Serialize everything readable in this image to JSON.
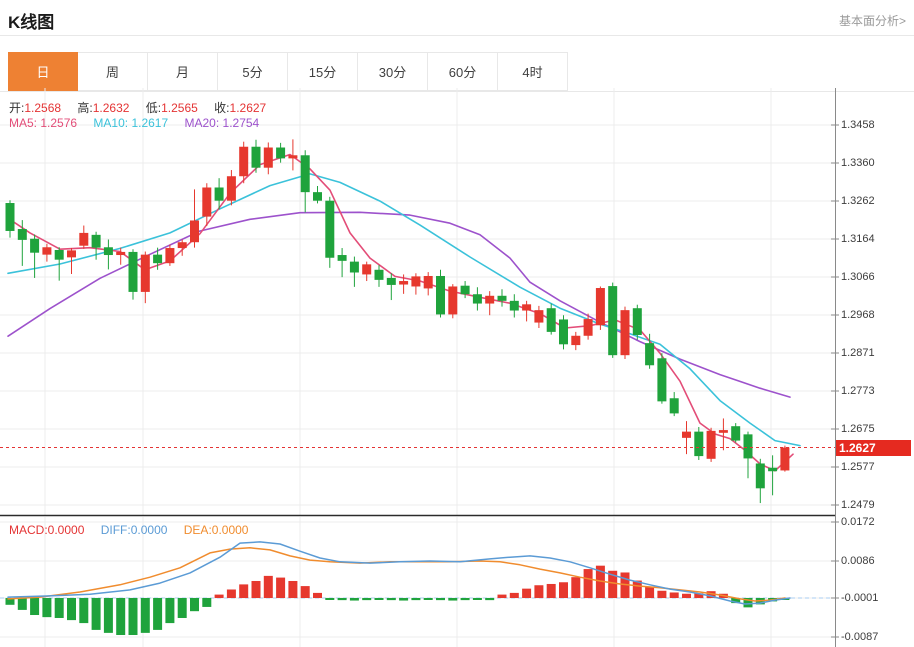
{
  "header": {
    "title": "K线图",
    "analysis_link": "基本面分析>"
  },
  "tabs": {
    "items": [
      "日",
      "周",
      "月",
      "5分",
      "15分",
      "30分",
      "60分",
      "4时"
    ],
    "selected_index": 0
  },
  "info": {
    "open_label": "开:",
    "open": "1.2568",
    "high_label": "高:",
    "high": "1.2632",
    "low_label": "低:",
    "low": "1.2565",
    "close_label": "收:",
    "close": "1.2627",
    "ma5_label": "MA5:",
    "ma5": "1.2576",
    "ma10_label": "MA10:",
    "ma10": "1.2617",
    "ma20_label": "MA20:",
    "ma20": "1.2754"
  },
  "macd_info": {
    "macd_label": "MACD:",
    "macd": "0.0000",
    "diff_label": "DIFF:",
    "diff": "0.0000",
    "dea_label": "DEA:",
    "dea": "0.0000"
  },
  "price_axis": {
    "labels": [
      "1.3458",
      "1.3360",
      "1.3262",
      "1.3164",
      "1.3066",
      "1.2968",
      "1.2871",
      "1.2773",
      "1.2675",
      "1.2577",
      "1.2479"
    ],
    "mark": "1.2627"
  },
  "macd_axis": {
    "labels": [
      "0.0172",
      "0.0086",
      "-0.0001",
      "-0.0087"
    ]
  },
  "colors": {
    "up": "#e6382e",
    "down": "#1fa33c",
    "ma5": "#e34d78",
    "ma10": "#3bc2da",
    "ma20": "#9d52cc",
    "diff": "#5b9bd5",
    "dea": "#f08c2e",
    "tab_active": "#ee8133",
    "value_red": "#e43434",
    "grid": "#ececec",
    "axis": "#8a8a8a",
    "mark_bg": "#e52a20",
    "price_line": "#e43434",
    "zero_dash": "#a8cdf0"
  },
  "chart_data": {
    "type": "candlestick",
    "period": "日",
    "ylim": [
      1.2479,
      1.3458
    ],
    "macd_ylim": [
      -0.0087,
      0.0172
    ],
    "last_price": 1.2627,
    "candles": [
      [
        1.3257,
        1.3264,
        1.3168,
        1.3185
      ],
      [
        1.319,
        1.3213,
        1.3095,
        1.3162
      ],
      [
        1.3165,
        1.3176,
        1.3064,
        1.3129
      ],
      [
        1.3124,
        1.3152,
        1.3106,
        1.3143
      ],
      [
        1.3136,
        1.3143,
        1.3057,
        1.3111
      ],
      [
        1.3117,
        1.3141,
        1.3074,
        1.3135
      ],
      [
        1.3147,
        1.3199,
        1.3139,
        1.318
      ],
      [
        1.3175,
        1.3183,
        1.3111,
        1.3142
      ],
      [
        1.3143,
        1.3163,
        1.3086,
        1.3123
      ],
      [
        1.3123,
        1.3142,
        1.3098,
        1.3131
      ],
      [
        1.3131,
        1.3138,
        1.3008,
        1.3028
      ],
      [
        1.3028,
        1.3132,
        1.2999,
        1.3124
      ],
      [
        1.3124,
        1.3142,
        1.3085,
        1.3102
      ],
      [
        1.3102,
        1.315,
        1.3095,
        1.3141
      ],
      [
        1.3141,
        1.3163,
        1.3121,
        1.3156
      ],
      [
        1.3156,
        1.3292,
        1.3142,
        1.3212
      ],
      [
        1.3222,
        1.3308,
        1.3198,
        1.3297
      ],
      [
        1.3297,
        1.3321,
        1.3241,
        1.3263
      ],
      [
        1.3263,
        1.3342,
        1.3251,
        1.3326
      ],
      [
        1.3326,
        1.3415,
        1.3308,
        1.3402
      ],
      [
        1.3402,
        1.342,
        1.3335,
        1.3348
      ],
      [
        1.3348,
        1.3413,
        1.3331,
        1.34
      ],
      [
        1.34,
        1.3412,
        1.3361,
        1.3372
      ],
      [
        1.3372,
        1.3421,
        1.3341,
        1.338
      ],
      [
        1.338,
        1.3393,
        1.3233,
        1.3285
      ],
      [
        1.3285,
        1.3301,
        1.3256,
        1.3263
      ],
      [
        1.3263,
        1.3273,
        1.309,
        1.3116
      ],
      [
        1.3123,
        1.3141,
        1.3066,
        1.3108
      ],
      [
        1.3106,
        1.3119,
        1.3041,
        1.3078
      ],
      [
        1.3073,
        1.3106,
        1.3056,
        1.3099
      ],
      [
        1.3085,
        1.3097,
        1.3041,
        1.3059
      ],
      [
        1.3064,
        1.3076,
        1.3007,
        1.3046
      ],
      [
        1.3047,
        1.3073,
        1.3023,
        1.3056
      ],
      [
        1.3042,
        1.3076,
        1.3021,
        1.3068
      ],
      [
        1.3037,
        1.3079,
        1.3019,
        1.3069
      ],
      [
        1.3069,
        1.3085,
        1.2962,
        1.297
      ],
      [
        1.297,
        1.3048,
        1.296,
        1.3042
      ],
      [
        1.3044,
        1.3056,
        1.3012,
        1.3022
      ],
      [
        1.3022,
        1.304,
        1.298,
        1.2998
      ],
      [
        1.2998,
        1.303,
        1.2968,
        1.3018
      ],
      [
        1.3018,
        1.3035,
        1.299,
        1.3005
      ],
      [
        1.3005,
        1.3022,
        1.2962,
        1.298
      ],
      [
        1.298,
        1.3005,
        1.2952,
        1.2996
      ],
      [
        1.2949,
        1.2992,
        1.2935,
        1.2981
      ],
      [
        1.2986,
        1.2998,
        1.2918,
        1.2925
      ],
      [
        1.2957,
        1.2968,
        1.288,
        1.2893
      ],
      [
        1.2891,
        1.2925,
        1.2878,
        1.2915
      ],
      [
        1.2915,
        1.2972,
        1.2905,
        1.2958
      ],
      [
        1.2942,
        1.3042,
        1.293,
        1.3038
      ],
      [
        1.3043,
        1.3052,
        1.2858,
        1.2865
      ],
      [
        1.2865,
        1.299,
        1.2855,
        1.2981
      ],
      [
        1.2986,
        1.2995,
        1.2905,
        1.2917
      ],
      [
        1.2896,
        1.292,
        1.283,
        1.2839
      ],
      [
        1.2857,
        1.287,
        1.274,
        1.2746
      ],
      [
        1.2754,
        1.277,
        1.2708,
        1.2715
      ],
      [
        1.2652,
        1.2695,
        1.261,
        1.2668
      ],
      [
        1.2668,
        1.268,
        1.2595,
        1.2605
      ],
      [
        1.2598,
        1.2678,
        1.259,
        1.267
      ],
      [
        1.2665,
        1.2702,
        1.262,
        1.2672
      ],
      [
        1.2682,
        1.269,
        1.264,
        1.2645
      ],
      [
        1.2661,
        1.2668,
        1.2548,
        1.2599
      ],
      [
        1.2586,
        1.2598,
        1.2484,
        1.2522
      ],
      [
        1.2575,
        1.2607,
        1.2504,
        1.2566
      ],
      [
        1.2568,
        1.2632,
        1.2565,
        1.2627
      ]
    ],
    "ma5_line": [
      [
        8,
        1.3218
      ],
      [
        30,
        1.318
      ],
      [
        60,
        1.3138
      ],
      [
        90,
        1.3142
      ],
      [
        120,
        1.3132
      ],
      [
        145,
        1.3085
      ],
      [
        170,
        1.3108
      ],
      [
        200,
        1.3178
      ],
      [
        230,
        1.3282
      ],
      [
        260,
        1.3356
      ],
      [
        290,
        1.3382
      ],
      [
        310,
        1.3345
      ],
      [
        330,
        1.329
      ],
      [
        350,
        1.318
      ],
      [
        370,
        1.3115
      ],
      [
        395,
        1.3068
      ],
      [
        420,
        1.3056
      ],
      [
        450,
        1.303
      ],
      [
        480,
        1.3014
      ],
      [
        510,
        1.2999
      ],
      [
        540,
        1.2972
      ],
      [
        565,
        1.2935
      ],
      [
        590,
        1.2941
      ],
      [
        615,
        1.2956
      ],
      [
        640,
        1.293
      ],
      [
        660,
        1.287
      ],
      [
        680,
        1.2798
      ],
      [
        700,
        1.269
      ],
      [
        715,
        1.2662
      ],
      [
        730,
        1.265
      ],
      [
        745,
        1.262
      ],
      [
        760,
        1.2585
      ],
      [
        775,
        1.2567
      ],
      [
        793,
        1.261
      ]
    ],
    "ma10_line": [
      [
        8,
        1.3076
      ],
      [
        60,
        1.31
      ],
      [
        120,
        1.314
      ],
      [
        170,
        1.318
      ],
      [
        220,
        1.3242
      ],
      [
        270,
        1.3302
      ],
      [
        310,
        1.3332
      ],
      [
        340,
        1.331
      ],
      [
        380,
        1.3262
      ],
      [
        420,
        1.32
      ],
      [
        470,
        1.3118
      ],
      [
        520,
        1.304
      ],
      [
        560,
        1.2986
      ],
      [
        600,
        1.2945
      ],
      [
        630,
        1.292
      ],
      [
        660,
        1.2893
      ],
      [
        690,
        1.283
      ],
      [
        720,
        1.2748
      ],
      [
        750,
        1.269
      ],
      [
        775,
        1.2645
      ],
      [
        800,
        1.2632
      ]
    ],
    "ma20_line": [
      [
        8,
        1.2914
      ],
      [
        50,
        1.2985
      ],
      [
        100,
        1.3063
      ],
      [
        150,
        1.3125
      ],
      [
        200,
        1.3185
      ],
      [
        250,
        1.3215
      ],
      [
        300,
        1.3232
      ],
      [
        360,
        1.3233
      ],
      [
        410,
        1.3226
      ],
      [
        450,
        1.3205
      ],
      [
        480,
        1.3175
      ],
      [
        510,
        1.3115
      ],
      [
        530,
        1.3053
      ],
      [
        560,
        1.3005
      ],
      [
        600,
        1.295
      ],
      [
        640,
        1.29
      ],
      [
        680,
        1.2855
      ],
      [
        720,
        1.2815
      ],
      [
        760,
        1.278
      ],
      [
        790,
        1.2757
      ]
    ],
    "macd": {
      "hist": [
        -0.0016,
        -0.0028,
        -0.004,
        -0.0045,
        -0.0047,
        -0.0052,
        -0.0059,
        -0.0075,
        -0.0082,
        -0.0087,
        -0.0087,
        -0.0082,
        -0.0075,
        -0.0059,
        -0.0047,
        -0.0031,
        -0.0021,
        0.0008,
        0.002,
        0.0032,
        0.004,
        0.0052,
        0.0048,
        0.004,
        0.0028,
        0.0012,
        -0.0003,
        -0.0005,
        -0.0006,
        -0.0005,
        -0.0004,
        -0.0005,
        -0.0006,
        -0.0005,
        -0.0004,
        -0.0005,
        -0.0006,
        -0.0005,
        -0.0004,
        -0.0005,
        0.0008,
        0.0012,
        0.0022,
        0.003,
        0.0033,
        0.0037,
        0.0049,
        0.0068,
        0.0076,
        0.0064,
        0.006,
        0.0041,
        0.0026,
        0.0017,
        0.0013,
        0.001,
        0.0011,
        0.0016,
        0.001,
        -0.0012,
        -0.0022,
        -0.0015,
        -0.0008,
        -0.0002
      ],
      "diff_line": [
        [
          8,
          0.0002
        ],
        [
          50,
          0.0005
        ],
        [
          90,
          0.0009
        ],
        [
          130,
          0.0019
        ],
        [
          160,
          0.0035
        ],
        [
          190,
          0.0059
        ],
        [
          220,
          0.0096
        ],
        [
          240,
          0.0129
        ],
        [
          260,
          0.0132
        ],
        [
          280,
          0.0127
        ],
        [
          300,
          0.011
        ],
        [
          320,
          0.0094
        ],
        [
          340,
          0.0085
        ],
        [
          370,
          0.0082
        ],
        [
          400,
          0.0085
        ],
        [
          430,
          0.0087
        ],
        [
          460,
          0.0085
        ],
        [
          490,
          0.0092
        ],
        [
          510,
          0.0096
        ],
        [
          530,
          0.0099
        ],
        [
          550,
          0.0094
        ],
        [
          570,
          0.0085
        ],
        [
          590,
          0.0071
        ],
        [
          610,
          0.0056
        ],
        [
          630,
          0.0042
        ],
        [
          650,
          0.0031
        ],
        [
          670,
          0.0021
        ],
        [
          690,
          0.0014
        ],
        [
          710,
          0.0005
        ],
        [
          730,
          -0.0007
        ],
        [
          745,
          -0.0014
        ],
        [
          760,
          -0.0012
        ],
        [
          775,
          -0.0005
        ],
        [
          790,
          0.0
        ]
      ],
      "dea_line": [
        [
          8,
          -0.0002
        ],
        [
          40,
          0.0002
        ],
        [
          80,
          0.0014
        ],
        [
          120,
          0.0031
        ],
        [
          150,
          0.0049
        ],
        [
          180,
          0.0071
        ],
        [
          210,
          0.0106
        ],
        [
          230,
          0.0115
        ],
        [
          250,
          0.0118
        ],
        [
          270,
          0.0113
        ],
        [
          290,
          0.0099
        ],
        [
          310,
          0.0089
        ],
        [
          330,
          0.0085
        ],
        [
          360,
          0.0082
        ],
        [
          390,
          0.0085
        ],
        [
          420,
          0.0085
        ],
        [
          450,
          0.0085
        ],
        [
          480,
          0.0087
        ],
        [
          500,
          0.0085
        ],
        [
          520,
          0.0078
        ],
        [
          540,
          0.0068
        ],
        [
          560,
          0.0059
        ],
        [
          580,
          0.0049
        ],
        [
          600,
          0.004
        ],
        [
          620,
          0.0033
        ],
        [
          640,
          0.0028
        ],
        [
          660,
          0.0024
        ],
        [
          680,
          0.0019
        ],
        [
          700,
          0.0014
        ],
        [
          720,
          0.0007
        ],
        [
          740,
          -0.0002
        ],
        [
          755,
          -0.0007
        ],
        [
          770,
          -0.0005
        ],
        [
          785,
          0.0
        ]
      ]
    }
  }
}
